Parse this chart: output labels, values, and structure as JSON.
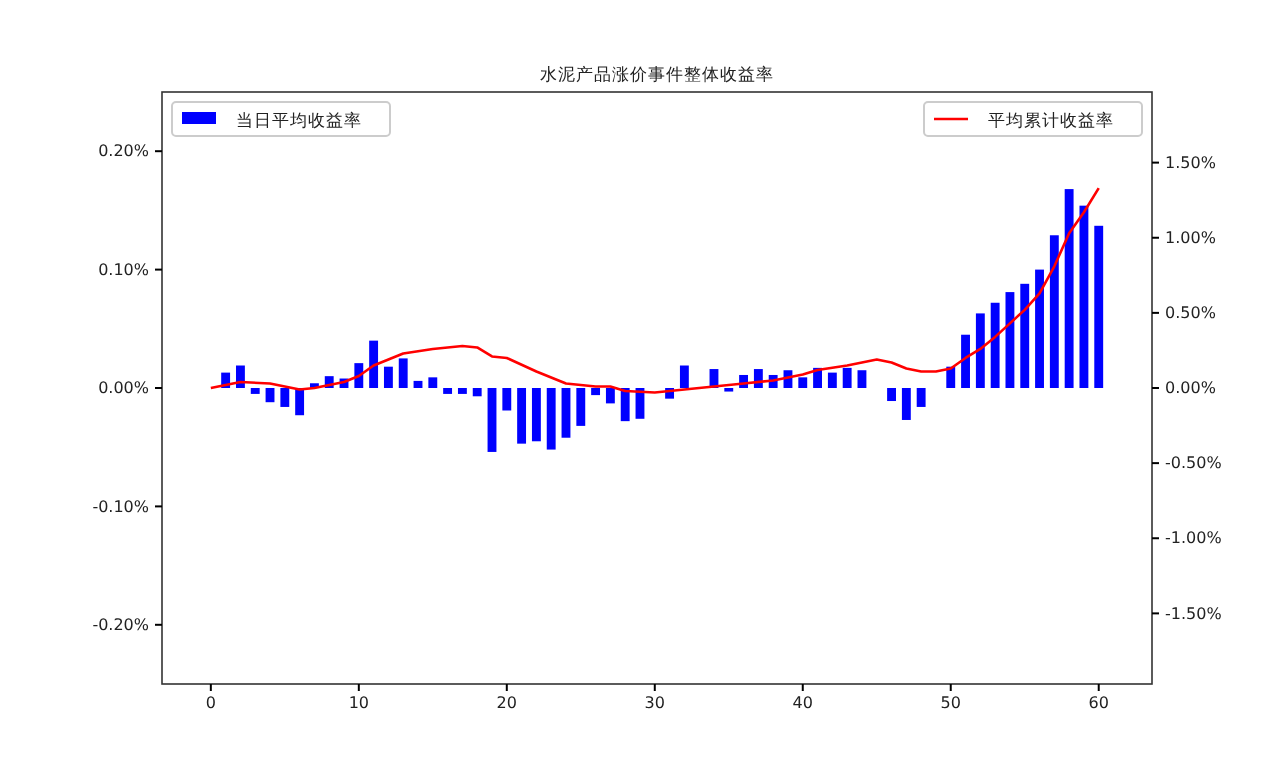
{
  "chart_data": {
    "type": "bar",
    "title": "水泥产品涨价事件整体收益率",
    "x": [
      1,
      2,
      3,
      4,
      5,
      6,
      7,
      8,
      9,
      10,
      11,
      12,
      13,
      14,
      15,
      16,
      17,
      18,
      19,
      20,
      21,
      22,
      23,
      24,
      25,
      26,
      27,
      28,
      29,
      30,
      31,
      32,
      33,
      34,
      35,
      36,
      37,
      38,
      39,
      40,
      41,
      42,
      43,
      44,
      45,
      46,
      47,
      48,
      49,
      50,
      51,
      52,
      53,
      54,
      55,
      56,
      57,
      58,
      59,
      60
    ],
    "series": [
      {
        "name": "当日平均收益率",
        "color": "#0000ff",
        "values": [
          0.013,
          0.019,
          -0.005,
          -0.012,
          -0.016,
          -0.023,
          0.004,
          0.01,
          0.008,
          0.021,
          0.04,
          0.018,
          0.025,
          0.006,
          0.009,
          -0.005,
          -0.005,
          -0.007,
          -0.054,
          -0.019,
          -0.047,
          -0.045,
          -0.052,
          -0.042,
          -0.032,
          -0.006,
          -0.013,
          -0.028,
          -0.026,
          0,
          -0.009,
          0.019,
          0,
          0.016,
          -0.003,
          0.011,
          0.016,
          0.011,
          0.015,
          0.009,
          0.017,
          0.013,
          0.017,
          0.015,
          0,
          -0.011,
          -0.027,
          -0.016,
          0,
          0.018,
          0.045,
          0.063,
          0.072,
          0.081,
          0.088,
          0.1,
          0.129,
          0.168,
          0.154,
          0.137
        ]
      },
      {
        "name": "平均累计收益率",
        "type": "line",
        "axis": "y2",
        "color": "#ff0000",
        "x": [
          0,
          2,
          4,
          6,
          7,
          9,
          10,
          11,
          13,
          15,
          17,
          18,
          19,
          20,
          22,
          24,
          26,
          27,
          28,
          30,
          32,
          34,
          36,
          38,
          40,
          41,
          43,
          45,
          46,
          47,
          48,
          49,
          50,
          51,
          52,
          53,
          54,
          55,
          56,
          57,
          58,
          59,
          60
        ],
        "values": [
          0,
          0.04,
          0.03,
          -0.01,
          0,
          0.04,
          0.08,
          0.15,
          0.23,
          0.26,
          0.28,
          0.27,
          0.21,
          0.2,
          0.11,
          0.03,
          0.01,
          0.01,
          -0.02,
          -0.03,
          -0.01,
          0.01,
          0.03,
          0.05,
          0.09,
          0.12,
          0.15,
          0.19,
          0.17,
          0.13,
          0.11,
          0.11,
          0.13,
          0.2,
          0.26,
          0.34,
          0.43,
          0.52,
          0.63,
          0.81,
          1.03,
          1.17,
          1.33
        ]
      }
    ],
    "xlim": [
      -3.3,
      63.6
    ],
    "xticks": [
      0,
      10,
      20,
      30,
      40,
      50,
      60
    ],
    "ylim": [
      -0.25,
      0.25
    ],
    "yticks": [
      {
        "value": -0.2,
        "label": "-0.20%"
      },
      {
        "value": -0.1,
        "label": "-0.10%"
      },
      {
        "value": 0,
        "label": "0.00%"
      },
      {
        "value": 0.1,
        "label": "0.10%"
      },
      {
        "value": 0.2,
        "label": "0.20%"
      }
    ],
    "y2lim": [
      -1.97,
      1.97
    ],
    "y2ticks": [
      {
        "value": -1.5,
        "label": "-1.50%"
      },
      {
        "value": -1,
        "label": "-1.00%"
      },
      {
        "value": -0.5,
        "label": "-0.50%"
      },
      {
        "value": 0,
        "label": "0.00%"
      },
      {
        "value": 0.5,
        "label": "0.50%"
      },
      {
        "value": 1,
        "label": "1.00%"
      },
      {
        "value": 1.5,
        "label": "1.50%"
      }
    ],
    "legend": "top",
    "line_style": "solid",
    "marker": "none"
  }
}
